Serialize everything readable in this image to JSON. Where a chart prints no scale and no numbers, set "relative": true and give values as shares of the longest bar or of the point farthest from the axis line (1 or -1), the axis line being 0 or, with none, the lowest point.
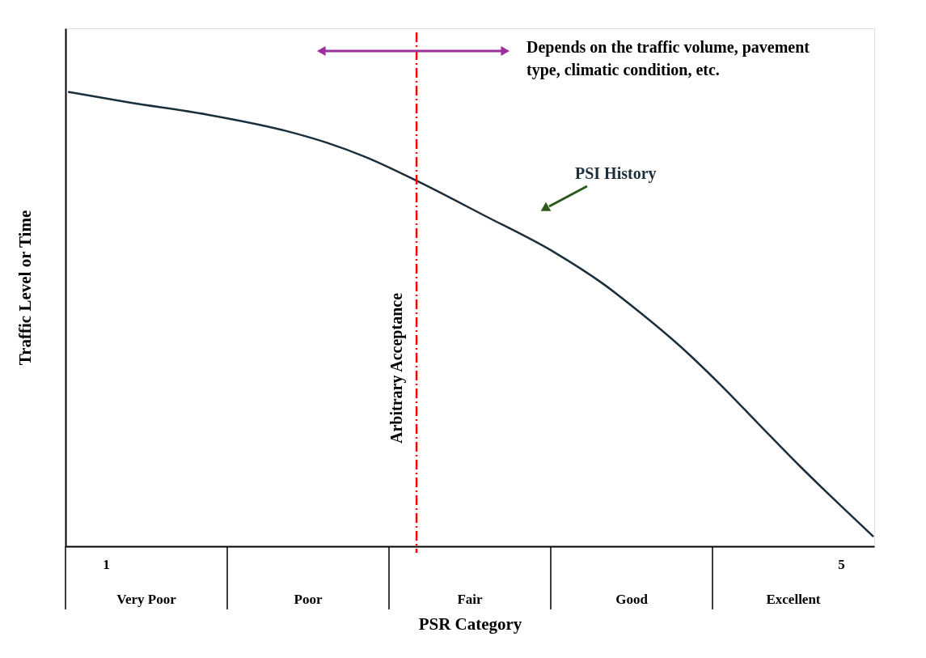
{
  "chart_data": {
    "type": "line",
    "relative": true,
    "xlabel": "PSR Category",
    "ylabel": "Traffic Level or Time",
    "xlim": [
      0.78,
      5.18
    ],
    "xticks": [
      1,
      5
    ],
    "tick_labels": "x",
    "grid": false,
    "marker": "none",
    "series": [
      {
        "name": "PSI History",
        "color": "#1a2e3b",
        "line_style": "solid",
        "x": [
          0.794,
          1.124,
          1.553,
          1.982,
          2.196,
          2.411,
          2.693,
          3.054,
          3.444,
          3.697,
          3.911,
          4.125,
          4.34,
          4.554,
          4.769,
          4.983,
          5.176
        ],
        "values": [
          1,
          0.977,
          0.95,
          0.914,
          0.889,
          0.857,
          0.804,
          0.729,
          0.646,
          0.58,
          0.513,
          0.44,
          0.357,
          0.268,
          0.179,
          0.095,
          0.021
        ]
      }
    ],
    "ref_lines": [
      {
        "axis": "x",
        "value": 2.69,
        "label": "Arbitrary Acceptance",
        "color": "#ff0000",
        "line_style": "dashed"
      }
    ],
    "annotations": [
      "Depends on the traffic volume, pavement type, climatic condition, etc.",
      "Very Poor",
      "Poor",
      "Fair",
      "Good",
      "Excellent"
    ]
  }
}
